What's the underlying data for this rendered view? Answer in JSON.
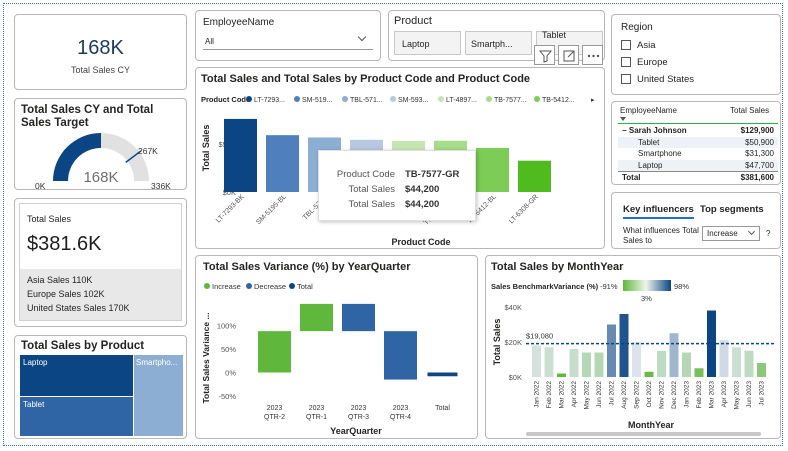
{
  "kpi_total_sales_cy": {
    "value": "168K",
    "label": "Total Sales CY"
  },
  "gauge": {
    "title": "Total Sales CY and Total Sales Target",
    "value": "168K",
    "min": "0K",
    "target": "267K",
    "max": "336K",
    "value_num": 168,
    "target_num": 267,
    "max_num": 336
  },
  "multirow_card": {
    "title": "Total Sales",
    "value": "$381.6K",
    "rows": [
      "Asia Sales 110K",
      "Europe Sales 102K",
      "United States Sales 170K"
    ]
  },
  "treemap": {
    "title": "Total Sales by Product",
    "items": [
      "Laptop",
      "Tablet",
      "Smartpho..."
    ]
  },
  "employee_slicer": {
    "label": "EmployeeName",
    "value": "All"
  },
  "product_slicer": {
    "label": "Product",
    "options": [
      "Laptop",
      "Smartph...",
      "Tablet"
    ]
  },
  "region_slicer": {
    "label": "Region",
    "options": [
      "Asia",
      "Europe",
      "United States"
    ]
  },
  "product_code_chart": {
    "title": "Total Sales and Total Sales by Product Code and Product Code",
    "legend_title": "Product Code",
    "ylabel": "Total Sales",
    "xlabel": "Product Code",
    "yticks": [
      "$50K",
      "$0K"
    ]
  },
  "tooltip": {
    "rows": [
      {
        "k": "Product Code",
        "v": "TB-7577-GR"
      },
      {
        "k": "Total Sales",
        "v": "$44,200"
      },
      {
        "k": "Total Sales",
        "v": "$44,200"
      }
    ]
  },
  "employee_table": {
    "headers": [
      "EmployeeName",
      "Total Sales"
    ],
    "rows": [
      {
        "name": "Sarah Johnson",
        "value": "$129,900",
        "bold": true
      },
      {
        "name": "Tablet",
        "value": "$50,900",
        "bold": false
      },
      {
        "name": "Smartphone",
        "value": "$31,300",
        "bold": false
      },
      {
        "name": "Laptop",
        "value": "$47,700",
        "bold": false
      },
      {
        "name": "Total",
        "value": "$381,600",
        "bold": true
      }
    ]
  },
  "key_influencers": {
    "tab1": "Key influencers",
    "tab2": "Top segments",
    "question": "What influences Total Sales to",
    "dropdown": "Increase",
    "help": "?"
  },
  "variance_chart": {
    "title": "Total Sales Variance (%) by YearQuarter",
    "legend": [
      "Increase",
      "Decrease",
      "Total"
    ],
    "ylabel": "Total Sales Variance ...",
    "xlabel": "YearQuarter",
    "yticks": [
      "100%",
      "50%",
      "0%",
      "-50%"
    ]
  },
  "monthyear_chart": {
    "title": "Total Sales by MonthYear",
    "legend_label": "Sales BenchmarkVariance (%)",
    "legend_min": "-91%",
    "legend_mid": "3%",
    "legend_max": "98%",
    "ylabel": "Total Sales",
    "xlabel": "MonthYear",
    "yticks": [
      "$40K",
      "$20K",
      "$0K"
    ],
    "ref_label": "$19,080"
  },
  "colors": {
    "dark_blue": "#0b4584",
    "mid_blue": "#2f64a5",
    "light_blue": "#8daed3",
    "green": "#5fb83b",
    "light_green": "#a7dc8a",
    "accent_green": "#22b04a"
  },
  "chart_data": [
    {
      "type": "bar",
      "title": "Total Sales and Total Sales by Product Code and Product Code",
      "xlabel": "Product Code",
      "ylabel": "Total Sales",
      "categories": [
        "LT-7293-BK",
        "SM-5195-BL",
        "TBL-571...",
        "SM-593...",
        "LT-4897...",
        "TB-7577-GR",
        "TB-5412-BL",
        "LT-6308-GR"
      ],
      "values": [
        63000,
        49000,
        47000,
        45000,
        44000,
        44200,
        38000,
        27000
      ],
      "colors": [
        "#0b4584",
        "#4f80bd",
        "#8daed3",
        "#b6c9e0",
        "#c6e5b2",
        "#a7dc8a",
        "#7ccc55",
        "#4fbb1e"
      ],
      "ylim": [
        0,
        75000
      ]
    },
    {
      "type": "bar",
      "title": "Total Sales Variance (%) by YearQuarter",
      "xlabel": "YearQuarter",
      "ylabel": "Total Sales Variance ...",
      "categories": [
        "2023 QTR-2",
        "2023 QTR-1",
        "2023 QTR-3",
        "2023 QTR-4",
        "Total"
      ],
      "series": [
        {
          "name": "Increase",
          "values": [
            [
              0,
              88
            ],
            [
              88,
              146
            ],
            null,
            null,
            null
          ]
        },
        {
          "name": "Decrease",
          "values": [
            null,
            null,
            [
              146,
              88
            ],
            [
              88,
              -15
            ],
            null
          ]
        },
        {
          "name": "Total",
          "values": [
            null,
            null,
            null,
            null,
            [
              0,
              -8
            ]
          ]
        }
      ],
      "ylim": [
        -50,
        150
      ]
    },
    {
      "type": "bar",
      "title": "Total Sales by MonthYear",
      "xlabel": "MonthYear",
      "ylabel": "Total Sales",
      "categories": [
        "Jan 2022",
        "Feb 2022",
        "Mar 2022",
        "Apr 2022",
        "May 2022",
        "Jun 2022",
        "Jul 2022",
        "Aug 2022",
        "Sep 2022",
        "Oct 2022",
        "Nov 2022",
        "Dec 2022",
        "Jan 2023",
        "Feb 2023",
        "Mar 2023",
        "Apr 2023",
        "May 2023",
        "Jun 2023",
        "Jul 2023"
      ],
      "values": [
        18000,
        17000,
        2000,
        16000,
        14000,
        14000,
        30000,
        36000,
        20000,
        3000,
        15000,
        25000,
        14000,
        5000,
        38000,
        21000,
        17000,
        15000,
        8000
      ],
      "benchmark_variance_pct": [
        -6,
        -11,
        -90,
        -16,
        -27,
        -27,
        57,
        89,
        5,
        -84,
        -21,
        31,
        -27,
        -74,
        98,
        10,
        -11,
        -21,
        -58
      ],
      "reference_line": 19080,
      "ylim": [
        0,
        45000
      ]
    }
  ]
}
